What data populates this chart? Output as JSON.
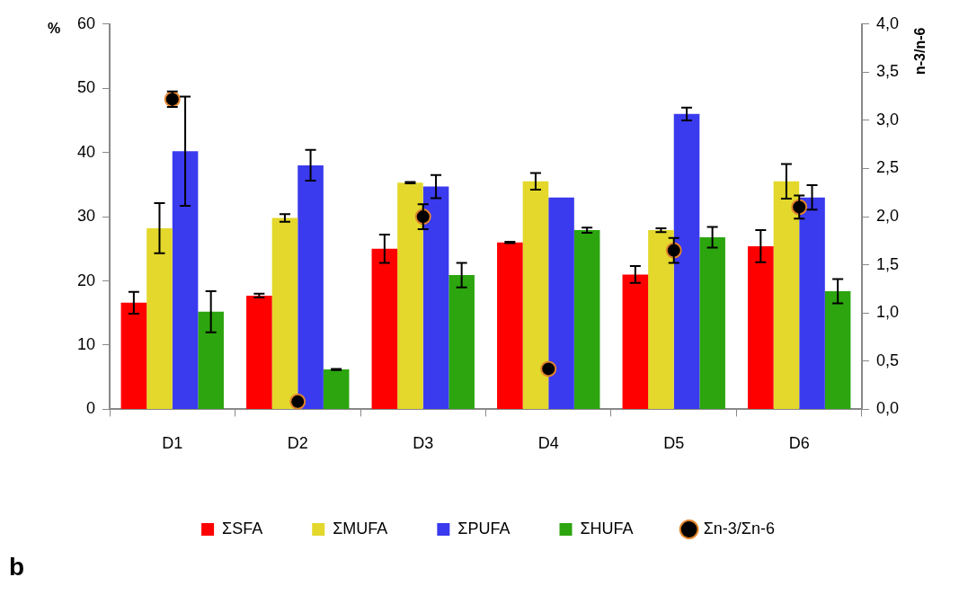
{
  "chart_data": {
    "type": "bar",
    "categories": [
      "D1",
      "D2",
      "D3",
      "D4",
      "D5",
      "D6"
    ],
    "series": [
      {
        "name": "ΣSFA",
        "color": "#ff0000",
        "values": [
          16.6,
          17.7,
          25.0,
          26.0,
          21.0,
          25.4
        ],
        "errors": [
          1.7,
          0.3,
          2.2,
          0.1,
          1.3,
          2.5
        ]
      },
      {
        "name": "ΣMUFA",
        "color": "#e3d82b",
        "values": [
          28.2,
          29.8,
          35.3,
          35.5,
          27.9,
          35.5
        ],
        "errors": [
          3.9,
          0.6,
          0.1,
          1.3,
          0.3,
          2.7
        ]
      },
      {
        "name": "ΣPUFA",
        "color": "#3a3aee",
        "values": [
          40.2,
          38.0,
          34.7,
          33.0,
          46.0,
          33.0
        ],
        "errors": [
          8.5,
          2.4,
          1.8,
          null,
          1.0,
          1.9
        ]
      },
      {
        "name": "ΣHUFA",
        "color": "#2ca50f",
        "values": [
          15.2,
          6.2,
          20.9,
          27.9,
          26.8,
          18.4
        ],
        "errors": [
          3.2,
          0.1,
          1.9,
          0.4,
          1.6,
          1.9
        ]
      },
      {
        "name": "Σn-3/Σn-6",
        "type": "scatter",
        "axis": "y2",
        "marker": "circle",
        "color": "#000000",
        "x": [
          "D1",
          "D2",
          "D3",
          "D4",
          "D5",
          "D6"
        ],
        "values": [
          3.22,
          0.08,
          2.0,
          0.42,
          1.65,
          2.1
        ],
        "errors": [
          0.08,
          null,
          0.13,
          null,
          0.13,
          0.12
        ]
      }
    ],
    "ylabel": "%",
    "y2label": "n-3/n-6",
    "ylim": [
      0,
      60
    ],
    "yticks": [
      0,
      10,
      20,
      30,
      40,
      50,
      60
    ],
    "y2lim": [
      0,
      4
    ],
    "y2ticks": [
      {
        "value": 0,
        "label": "0,0"
      },
      {
        "value": 0.5,
        "label": "0,5"
      },
      {
        "value": 1,
        "label": "1,0"
      },
      {
        "value": 1.5,
        "label": "1,5"
      },
      {
        "value": 2,
        "label": "2,0"
      },
      {
        "value": 2.5,
        "label": "2,5"
      },
      {
        "value": 3,
        "label": "3,0"
      },
      {
        "value": 3.5,
        "label": "3,5"
      },
      {
        "value": 4,
        "label": "4,0"
      }
    ],
    "annotations": [
      "b"
    ],
    "grid": false,
    "legend": "bottom"
  }
}
